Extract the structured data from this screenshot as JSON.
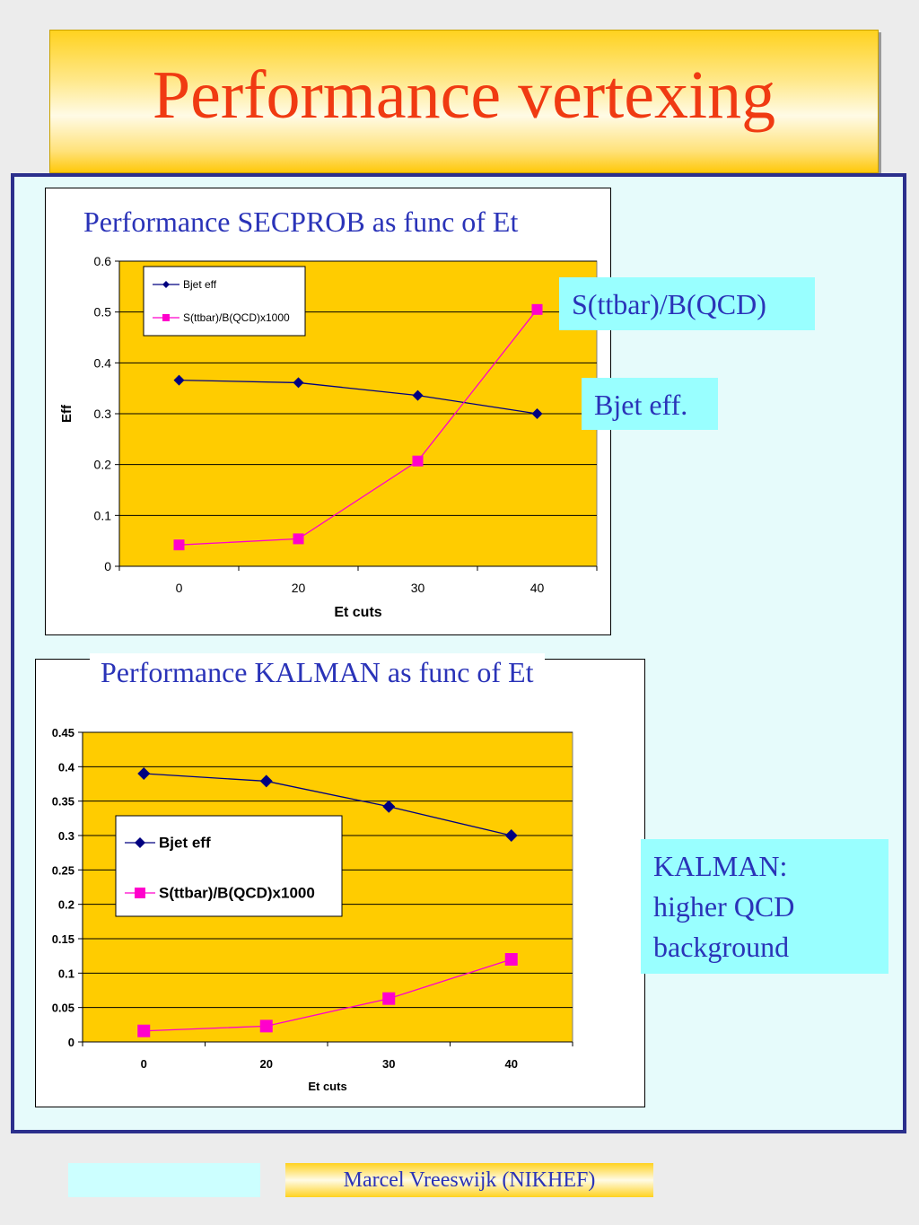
{
  "slide": {
    "title": "Performance vertexing",
    "footer_author": "Marcel Vreeswijk (NIKHEF)"
  },
  "labels": {
    "secprob_signal": "S(ttbar)/B(QCD)",
    "secprob_bjet": "Bjet eff.",
    "kalman_note_line1": "KALMAN:",
    "kalman_note_line2": "higher QCD",
    "kalman_note_line3": "background"
  },
  "colors": {
    "plot_bg": "#ffcc00",
    "bjet_series": "#000080",
    "signal_series": "#ff00cc",
    "title_text": "#f03a12",
    "label_text": "#2a33b8",
    "label_bg": "#99ffff",
    "panel_bg": "#e6fbfb",
    "panel_border": "#2b2f8c"
  },
  "chart_data": [
    {
      "type": "line",
      "title": "Performance SECPROB as func of Et",
      "xlabel": "Et cuts",
      "ylabel": "Eff",
      "categories": [
        "0",
        "20",
        "30",
        "40"
      ],
      "ylim": [
        0,
        0.6
      ],
      "yticks": [
        "0",
        "0.1",
        "0.2",
        "0.3",
        "0.4",
        "0.5",
        "0.6"
      ],
      "grid": true,
      "legend": "top-left",
      "series": [
        {
          "name": "Bjet eff",
          "values": [
            0.366,
            0.361,
            0.336,
            0.3
          ],
          "marker": "diamond"
        },
        {
          "name": "S(ttbar)/B(QCD)x1000",
          "values": [
            0.042,
            0.054,
            0.207,
            0.505
          ],
          "marker": "square"
        }
      ]
    },
    {
      "type": "line",
      "title": "Performance KALMAN as func of Et",
      "xlabel": "Et cuts",
      "ylabel": "",
      "categories": [
        "0",
        "20",
        "30",
        "40"
      ],
      "ylim": [
        0,
        0.45
      ],
      "yticks": [
        "0",
        "0.05",
        "0.1",
        "0.15",
        "0.2",
        "0.25",
        "0.3",
        "0.35",
        "0.4",
        "0.45"
      ],
      "grid": true,
      "legend": "middle-left",
      "series": [
        {
          "name": "Bjet eff",
          "values": [
            0.39,
            0.379,
            0.342,
            0.3
          ],
          "marker": "diamond"
        },
        {
          "name": "S(ttbar)/B(QCD)x1000",
          "values": [
            0.016,
            0.023,
            0.063,
            0.12
          ],
          "marker": "square"
        }
      ]
    }
  ]
}
